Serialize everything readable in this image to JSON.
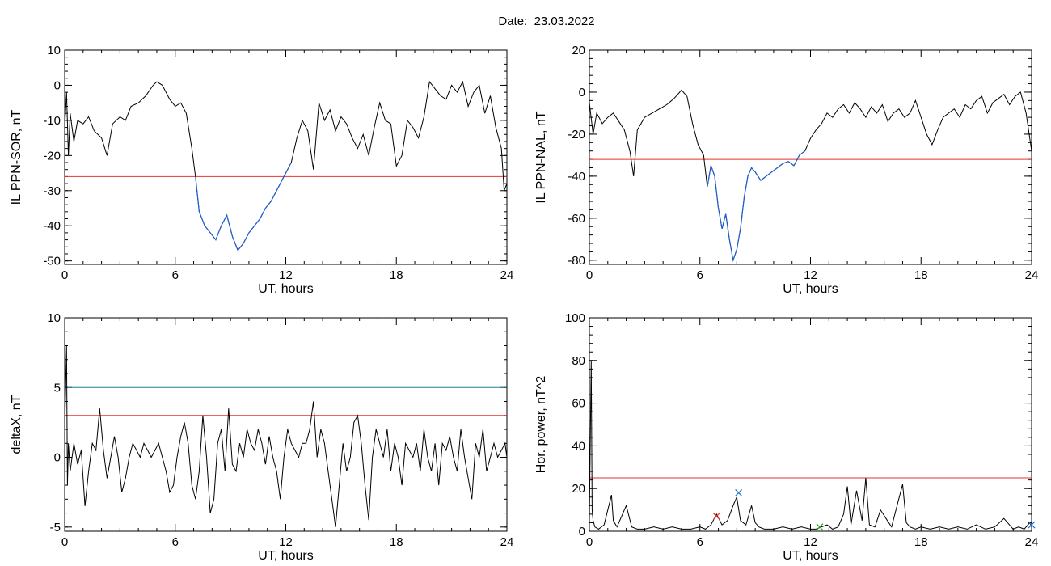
{
  "header": {
    "date_label": "Date:",
    "date_value": "23.03.2022"
  },
  "colors": {
    "data": "#000000",
    "highlight": "#1f5fcf",
    "threshold_red": "#e8342c",
    "threshold_teal": "#1f7fa0",
    "marker_red": "#e8342c",
    "marker_blue": "#1f6fcf",
    "marker_green": "#2aa02a"
  },
  "chart_data": [
    {
      "id": "sor",
      "type": "line",
      "xlabel": "UT, hours",
      "ylabel": "IL PPN-SOR, nT",
      "xlim": [
        0,
        24
      ],
      "ylim": [
        -51,
        10
      ],
      "xticks": [
        0,
        6,
        12,
        18,
        24
      ],
      "yticks": [
        10,
        0,
        -10,
        -20,
        -30,
        -40,
        -50
      ],
      "threshold": -26,
      "series": [
        {
          "x": [
            0,
            0.1,
            0.2,
            0.3,
            0.5,
            0.7,
            1,
            1.3,
            1.6,
            2,
            2.3,
            2.6,
            3,
            3.3,
            3.6,
            4,
            4.4,
            4.8,
            5,
            5.3,
            5.7,
            6,
            6.3,
            6.6,
            6.9,
            7.1,
            7.3,
            7.6,
            7.9,
            8.2,
            8.5,
            8.8,
            9.1,
            9.4,
            9.7,
            10,
            10.3,
            10.6,
            10.9,
            11.2,
            11.5,
            11.8,
            12,
            12.3,
            12.6,
            12.9,
            13.2,
            13.5,
            13.8,
            14.1,
            14.4,
            14.7,
            15,
            15.3,
            15.6,
            15.9,
            16.2,
            16.5,
            16.8,
            17.1,
            17.4,
            17.7,
            18,
            18.3,
            18.6,
            18.9,
            19.2,
            19.5,
            19.8,
            20.1,
            20.4,
            20.7,
            21,
            21.3,
            21.6,
            21.9,
            22.2,
            22.5,
            22.8,
            23.1,
            23.4,
            23.7,
            23.85,
            24
          ],
          "y": [
            -12,
            -2,
            -20,
            -8,
            -16,
            -10,
            -11,
            -9,
            -13,
            -15,
            -20,
            -11,
            -9,
            -10,
            -6,
            -5,
            -3,
            0,
            1,
            0,
            -4,
            -6,
            -5,
            -8,
            -18,
            -26,
            -36,
            -40,
            -42,
            -44,
            -40,
            -37,
            -43,
            -47,
            -45,
            -42,
            -40,
            -38,
            -35,
            -33,
            -30,
            -27,
            -25,
            -22,
            -15,
            -10,
            -13,
            -24,
            -5,
            -10,
            -7,
            -13,
            -9,
            -11,
            -15,
            -18,
            -14,
            -20,
            -12,
            -5,
            -10,
            -11,
            -23,
            -20,
            -10,
            -12,
            -15,
            -9,
            1,
            -1,
            -3,
            -4,
            0,
            -2,
            1,
            -6,
            -2,
            0,
            -8,
            -3,
            -12,
            -18,
            -30,
            -28
          ]
        }
      ]
    },
    {
      "id": "nal",
      "type": "line",
      "xlabel": "UT, hours",
      "ylabel": "IL PPN-NAL, nT",
      "xlim": [
        0,
        24
      ],
      "ylim": [
        -82,
        20
      ],
      "xticks": [
        0,
        6,
        12,
        18,
        24
      ],
      "yticks": [
        20,
        0,
        -20,
        -40,
        -60,
        -80
      ],
      "threshold": -32,
      "series": [
        {
          "x": [
            0,
            0.2,
            0.4,
            0.7,
            1,
            1.3,
            1.6,
            1.9,
            2.2,
            2.4,
            2.6,
            3,
            3.4,
            3.8,
            4.2,
            4.6,
            5,
            5.3,
            5.6,
            5.9,
            6.2,
            6.4,
            6.6,
            6.8,
            7,
            7.2,
            7.4,
            7.6,
            7.8,
            8,
            8.2,
            8.4,
            8.6,
            8.8,
            9,
            9.3,
            9.6,
            9.9,
            10.2,
            10.5,
            10.8,
            11.1,
            11.4,
            11.7,
            12,
            12.3,
            12.6,
            12.9,
            13.2,
            13.5,
            13.8,
            14.1,
            14.4,
            14.7,
            15,
            15.3,
            15.6,
            15.9,
            16.2,
            16.5,
            16.8,
            17.1,
            17.4,
            17.7,
            18,
            18.3,
            18.6,
            18.9,
            19.2,
            19.5,
            19.8,
            20.1,
            20.4,
            20.7,
            21,
            21.3,
            21.6,
            21.9,
            22.2,
            22.5,
            22.8,
            23.1,
            23.4,
            23.7,
            24
          ],
          "y": [
            -5,
            -20,
            -10,
            -15,
            -12,
            -10,
            -14,
            -18,
            -28,
            -40,
            -18,
            -12,
            -10,
            -8,
            -6,
            -3,
            1,
            -2,
            -15,
            -25,
            -30,
            -45,
            -35,
            -40,
            -55,
            -65,
            -58,
            -70,
            -80,
            -75,
            -65,
            -50,
            -40,
            -36,
            -38,
            -42,
            -40,
            -38,
            -36,
            -34,
            -33,
            -35,
            -30,
            -28,
            -22,
            -18,
            -15,
            -10,
            -12,
            -8,
            -6,
            -10,
            -5,
            -8,
            -12,
            -7,
            -10,
            -6,
            -14,
            -10,
            -8,
            -12,
            -10,
            -4,
            -12,
            -20,
            -25,
            -18,
            -12,
            -10,
            -8,
            -12,
            -6,
            -8,
            -4,
            -2,
            -10,
            -5,
            -3,
            -1,
            -6,
            -2,
            0,
            -10,
            -28
          ]
        }
      ]
    },
    {
      "id": "deltax",
      "type": "line",
      "xlabel": "UT, hours",
      "ylabel": "deltaX, nT",
      "xlim": [
        0,
        24
      ],
      "ylim": [
        -5.3,
        10
      ],
      "xticks": [
        0,
        6,
        12,
        18,
        24
      ],
      "yticks": [
        10,
        5,
        0,
        -5
      ],
      "thresholds": [
        5,
        3
      ],
      "series": [
        {
          "x": [
            0,
            0.1,
            0.15,
            0.2,
            0.3,
            0.5,
            0.7,
            0.9,
            1.1,
            1.3,
            1.5,
            1.7,
            1.9,
            2.1,
            2.3,
            2.5,
            2.7,
            2.9,
            3.1,
            3.3,
            3.5,
            3.7,
            3.9,
            4.1,
            4.3,
            4.5,
            4.7,
            4.9,
            5.1,
            5.3,
            5.5,
            5.7,
            5.9,
            6.1,
            6.3,
            6.5,
            6.7,
            6.9,
            7.1,
            7.3,
            7.5,
            7.7,
            7.9,
            8.1,
            8.3,
            8.5,
            8.7,
            8.9,
            9.1,
            9.3,
            9.5,
            9.7,
            9.9,
            10.1,
            10.3,
            10.5,
            10.7,
            10.9,
            11.1,
            11.3,
            11.5,
            11.7,
            11.9,
            12.1,
            12.3,
            12.5,
            12.7,
            12.9,
            13.1,
            13.3,
            13.5,
            13.7,
            13.9,
            14.1,
            14.3,
            14.5,
            14.7,
            14.9,
            15.1,
            15.3,
            15.5,
            15.7,
            15.9,
            16.1,
            16.3,
            16.5,
            16.7,
            16.9,
            17.1,
            17.3,
            17.5,
            17.7,
            17.9,
            18.1,
            18.3,
            18.5,
            18.7,
            18.9,
            19.1,
            19.3,
            19.5,
            19.7,
            19.9,
            20.1,
            20.3,
            20.5,
            20.7,
            20.9,
            21.1,
            21.3,
            21.5,
            21.7,
            21.9,
            22.1,
            22.3,
            22.5,
            22.7,
            22.9,
            23.1,
            23.3,
            23.5,
            23.7,
            23.9,
            24
          ],
          "y": [
            2,
            8,
            -2,
            1,
            -1,
            1,
            -0.5,
            0.5,
            -3.5,
            -1,
            1,
            0.5,
            3.5,
            0.5,
            -1.5,
            0,
            1.5,
            0,
            -2.5,
            -1.5,
            0,
            1,
            0.5,
            0,
            1,
            0.5,
            0,
            0.5,
            1,
            0,
            -1,
            -2.5,
            -2,
            0,
            1.5,
            2.5,
            1,
            -2,
            -3,
            -1,
            3,
            0,
            -4,
            -3,
            1,
            2,
            -1,
            3.5,
            -0.5,
            -1,
            1,
            0,
            2,
            1,
            0.5,
            2,
            1,
            -0.5,
            1.5,
            0,
            -1,
            -3,
            0,
            2,
            1,
            0.5,
            0,
            1,
            1,
            2,
            4,
            0,
            2,
            1,
            -1,
            -3,
            -5,
            -2,
            1,
            -1,
            0,
            2.5,
            3,
            1,
            -2,
            -4.5,
            0,
            2,
            1,
            0,
            2,
            -1,
            1,
            0,
            -2,
            1,
            0.5,
            0,
            1,
            -1,
            2,
            0,
            -1,
            1,
            -2,
            1,
            0.5,
            1.5,
            0,
            -1,
            2,
            0,
            -1.5,
            -3,
            1,
            0,
            2,
            -1,
            0,
            1,
            0,
            0.5,
            1,
            0
          ]
        }
      ]
    },
    {
      "id": "power",
      "type": "line",
      "xlabel": "UT, hours",
      "ylabel": "Hor. power, nT^2",
      "xlim": [
        0,
        24
      ],
      "ylim": [
        0,
        100
      ],
      "xticks": [
        0,
        6,
        12,
        18,
        24
      ],
      "yticks": [
        100,
        80,
        60,
        40,
        20,
        0
      ],
      "threshold": 25,
      "markers": [
        {
          "x": 6.9,
          "y": 7,
          "color": "#e8342c"
        },
        {
          "x": 8.1,
          "y": 18,
          "color": "#1f6fcf"
        },
        {
          "x": 12.5,
          "y": 2,
          "color": "#2aa02a"
        },
        {
          "x": 24,
          "y": 3,
          "color": "#1f6fcf"
        }
      ],
      "series": [
        {
          "x": [
            0,
            0.1,
            0.15,
            0.2,
            0.3,
            0.5,
            0.8,
            1,
            1.2,
            1.3,
            1.5,
            1.8,
            2,
            2.3,
            2.6,
            3,
            3.5,
            4,
            4.5,
            5,
            5.5,
            6,
            6.3,
            6.6,
            6.9,
            7.2,
            7.5,
            7.8,
            8,
            8.2,
            8.5,
            8.8,
            9,
            9.2,
            9.5,
            10,
            10.5,
            11,
            11.5,
            12,
            12.3,
            12.6,
            12.9,
            13.2,
            13.5,
            13.8,
            14,
            14.2,
            14.5,
            14.8,
            15,
            15.2,
            15.5,
            15.8,
            16.1,
            16.4,
            16.7,
            17,
            17.2,
            17.4,
            17.7,
            18,
            18.5,
            19,
            19.5,
            20,
            20.5,
            21,
            21.5,
            22,
            22.5,
            23,
            23.3,
            23.6,
            23.9,
            24
          ],
          "y": [
            5,
            80,
            10,
            5,
            2,
            1,
            3,
            10,
            17,
            5,
            2,
            8,
            12,
            2,
            1,
            1,
            2,
            1,
            2,
            1,
            1,
            2,
            1,
            3,
            8,
            3,
            5,
            12,
            16,
            5,
            3,
            12,
            4,
            2,
            1,
            1,
            2,
            1,
            2,
            1,
            1,
            2,
            3,
            1,
            2,
            8,
            21,
            3,
            19,
            5,
            25,
            3,
            2,
            10,
            6,
            2,
            12,
            22,
            4,
            2,
            1,
            2,
            1,
            2,
            1,
            2,
            1,
            3,
            1,
            2,
            6,
            1,
            2,
            1,
            4,
            2
          ]
        }
      ]
    }
  ]
}
